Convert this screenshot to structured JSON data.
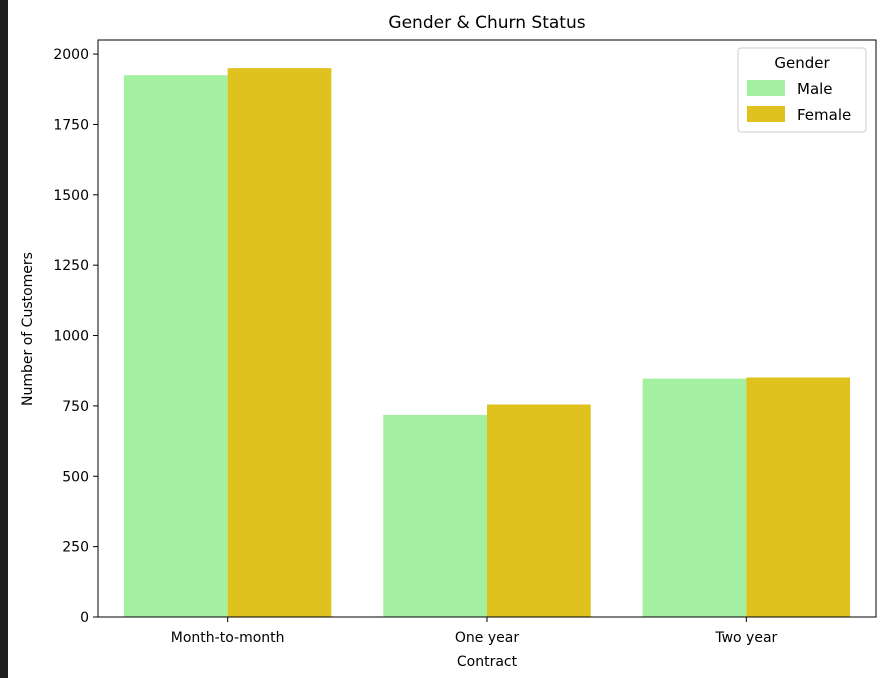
{
  "chart_data": {
    "type": "bar",
    "title": "Gender & Churn Status",
    "xlabel": "Contract",
    "ylabel": "Number of Customers",
    "categories": [
      "Month-to-month",
      "One year",
      "Two year"
    ],
    "series": [
      {
        "name": "Male",
        "values": [
          1925,
          718,
          847
        ],
        "color": "#a2f0a0"
      },
      {
        "name": "Female",
        "values": [
          1950,
          755,
          851
        ],
        "color": "#e0c21f"
      }
    ],
    "ylim": [
      0,
      2050
    ],
    "yticks": [
      0,
      250,
      500,
      750,
      1000,
      1250,
      1500,
      1750,
      2000
    ],
    "legend": {
      "title": "Gender",
      "placement": "top-right"
    },
    "grid": false
  }
}
